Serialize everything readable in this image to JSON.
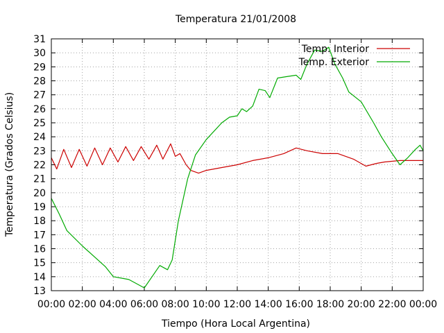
{
  "chart_data": {
    "type": "line",
    "title": "Temperatura 21/01/2008",
    "xlabel": "Tiempo (Hora Local Argentina)",
    "ylabel": "Temperatura (Grados Celsius)",
    "xlim": [
      0,
      24
    ],
    "ylim": [
      13,
      31
    ],
    "x_ticks": [
      {
        "value": 0,
        "label": "00:00"
      },
      {
        "value": 2,
        "label": "02:00"
      },
      {
        "value": 4,
        "label": "04:00"
      },
      {
        "value": 6,
        "label": "06:00"
      },
      {
        "value": 8,
        "label": "08:00"
      },
      {
        "value": 10,
        "label": "10:00"
      },
      {
        "value": 12,
        "label": "12:00"
      },
      {
        "value": 14,
        "label": "14:00"
      },
      {
        "value": 16,
        "label": "16:00"
      },
      {
        "value": 18,
        "label": "18:00"
      },
      {
        "value": 20,
        "label": "20:00"
      },
      {
        "value": 22,
        "label": "22:00"
      },
      {
        "value": 24,
        "label": "00:00"
      }
    ],
    "y_ticks": [
      13,
      14,
      15,
      16,
      17,
      18,
      19,
      20,
      21,
      22,
      23,
      24,
      25,
      26,
      27,
      28,
      29,
      30,
      31
    ],
    "grid": true,
    "legend_position": "top-right",
    "series": [
      {
        "name": "Temp. Interior",
        "color": "#cc0000",
        "points": [
          [
            0,
            22.5
          ],
          [
            0.35,
            21.7
          ],
          [
            0.8,
            23.1
          ],
          [
            1.3,
            21.8
          ],
          [
            1.8,
            23.1
          ],
          [
            2.3,
            21.9
          ],
          [
            2.8,
            23.2
          ],
          [
            3.3,
            22.0
          ],
          [
            3.8,
            23.2
          ],
          [
            4.3,
            22.2
          ],
          [
            4.8,
            23.3
          ],
          [
            5.3,
            22.3
          ],
          [
            5.8,
            23.3
          ],
          [
            6.3,
            22.4
          ],
          [
            6.8,
            23.4
          ],
          [
            7.2,
            22.4
          ],
          [
            7.7,
            23.5
          ],
          [
            8.0,
            22.6
          ],
          [
            8.3,
            22.8
          ],
          [
            8.7,
            22.0
          ],
          [
            9.0,
            21.6
          ],
          [
            9.5,
            21.4
          ],
          [
            10.0,
            21.6
          ],
          [
            11.0,
            21.8
          ],
          [
            12.0,
            22.0
          ],
          [
            13.0,
            22.3
          ],
          [
            14.0,
            22.5
          ],
          [
            15.0,
            22.8
          ],
          [
            15.8,
            23.2
          ],
          [
            16.5,
            23.0
          ],
          [
            17.5,
            22.8
          ],
          [
            18.5,
            22.8
          ],
          [
            19.5,
            22.4
          ],
          [
            20.3,
            21.9
          ],
          [
            21.0,
            22.1
          ],
          [
            21.5,
            22.2
          ],
          [
            22.5,
            22.3
          ],
          [
            24.0,
            22.3
          ]
        ]
      },
      {
        "name": "Temp. Exterior",
        "color": "#00aa00",
        "points": [
          [
            0,
            19.6
          ],
          [
            0.5,
            18.5
          ],
          [
            1.0,
            17.3
          ],
          [
            2.0,
            16.2
          ],
          [
            3.0,
            15.2
          ],
          [
            3.5,
            14.7
          ],
          [
            4.0,
            14.0
          ],
          [
            5.0,
            13.8
          ],
          [
            5.5,
            13.5
          ],
          [
            6.0,
            13.2
          ],
          [
            6.5,
            14.0
          ],
          [
            7.0,
            14.8
          ],
          [
            7.5,
            14.5
          ],
          [
            7.8,
            15.2
          ],
          [
            8.2,
            18.0
          ],
          [
            8.8,
            21.0
          ],
          [
            9.3,
            22.7
          ],
          [
            10.0,
            23.8
          ],
          [
            11.0,
            25.0
          ],
          [
            11.5,
            25.4
          ],
          [
            12.0,
            25.5
          ],
          [
            12.3,
            26.0
          ],
          [
            12.6,
            25.8
          ],
          [
            13.0,
            26.2
          ],
          [
            13.4,
            27.4
          ],
          [
            13.8,
            27.3
          ],
          [
            14.1,
            26.8
          ],
          [
            14.6,
            28.2
          ],
          [
            15.2,
            28.3
          ],
          [
            15.8,
            28.4
          ],
          [
            16.1,
            28.1
          ],
          [
            16.5,
            29.2
          ],
          [
            17.0,
            30.2
          ],
          [
            17.5,
            30.1
          ],
          [
            17.9,
            30.4
          ],
          [
            18.3,
            29.2
          ],
          [
            18.8,
            28.2
          ],
          [
            19.2,
            27.2
          ],
          [
            20.0,
            26.5
          ],
          [
            20.8,
            25.0
          ],
          [
            21.3,
            24.0
          ],
          [
            22.0,
            22.8
          ],
          [
            22.5,
            22.0
          ],
          [
            23.0,
            22.5
          ],
          [
            23.5,
            23.1
          ],
          [
            23.8,
            23.4
          ],
          [
            24.0,
            23.0
          ]
        ]
      }
    ]
  }
}
